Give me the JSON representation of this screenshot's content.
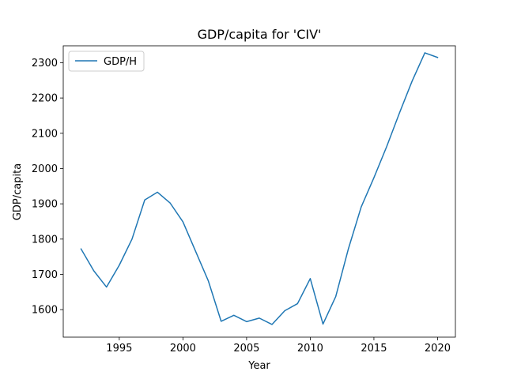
{
  "chart_data": {
    "type": "line",
    "title": "GDP/capita for 'CIV'",
    "xlabel": "Year",
    "ylabel": "GDP/capita",
    "xlim": [
      1990.6,
      2021.4
    ],
    "ylim": [
      1522,
      2348
    ],
    "x_ticks": [
      1995,
      2000,
      2005,
      2010,
      2015,
      2020
    ],
    "y_ticks": [
      1600,
      1700,
      1800,
      1900,
      2000,
      2100,
      2200,
      2300
    ],
    "grid": false,
    "legend_position": "top-left",
    "series": [
      {
        "name": "GDP/H",
        "color": "#1f77b4",
        "x": [
          1992,
          1993,
          1994,
          1995,
          1996,
          1997,
          1998,
          1999,
          2000,
          2001,
          2002,
          2003,
          2004,
          2005,
          2006,
          2007,
          2008,
          2009,
          2010,
          2011,
          2012,
          2013,
          2014,
          2015,
          2016,
          2017,
          2018,
          2019,
          2020
        ],
        "y": [
          1772,
          1710,
          1664,
          1726,
          1800,
          1911,
          1933,
          1902,
          1849,
          1765,
          1681,
          1567,
          1584,
          1566,
          1576,
          1558,
          1597,
          1617,
          1688,
          1559,
          1637,
          1773,
          1891,
          1974,
          2062,
          2157,
          2248,
          2328,
          2315
        ]
      }
    ]
  }
}
